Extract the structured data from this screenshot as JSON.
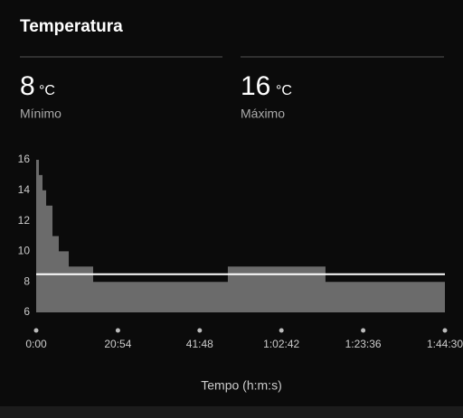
{
  "header": {
    "title": "Temperatura"
  },
  "stats": [
    {
      "value": 8,
      "unit": "°C",
      "label": "Mínimo"
    },
    {
      "value": 16,
      "unit": "°C",
      "label": "Máximo"
    }
  ],
  "chart_data": {
    "type": "step-area",
    "x_label": "Tempo (h:m:s)",
    "x": [
      0,
      42,
      97,
      153,
      250,
      347,
      500,
      874,
      2940,
      4438,
      6270
    ],
    "values": [
      16,
      15,
      14,
      13,
      11,
      10,
      9,
      8,
      9,
      8,
      8
    ],
    "color": "#6b6b6b",
    "reference_line": 8.5,
    "reference_color": "#ffffff",
    "xlim": [
      0,
      6270
    ],
    "xticks": [
      {
        "value": 0,
        "label": "0:00"
      },
      {
        "value": 1254,
        "label": "20:54"
      },
      {
        "value": 2508,
        "label": "41:48"
      },
      {
        "value": 3762,
        "label": "1:02:42"
      },
      {
        "value": 5016,
        "label": "1:23:36"
      },
      {
        "value": 6270,
        "label": "1:44:30"
      }
    ],
    "ylim": [
      6,
      16
    ],
    "yticks": [
      6,
      8,
      10,
      12,
      14,
      16
    ]
  }
}
